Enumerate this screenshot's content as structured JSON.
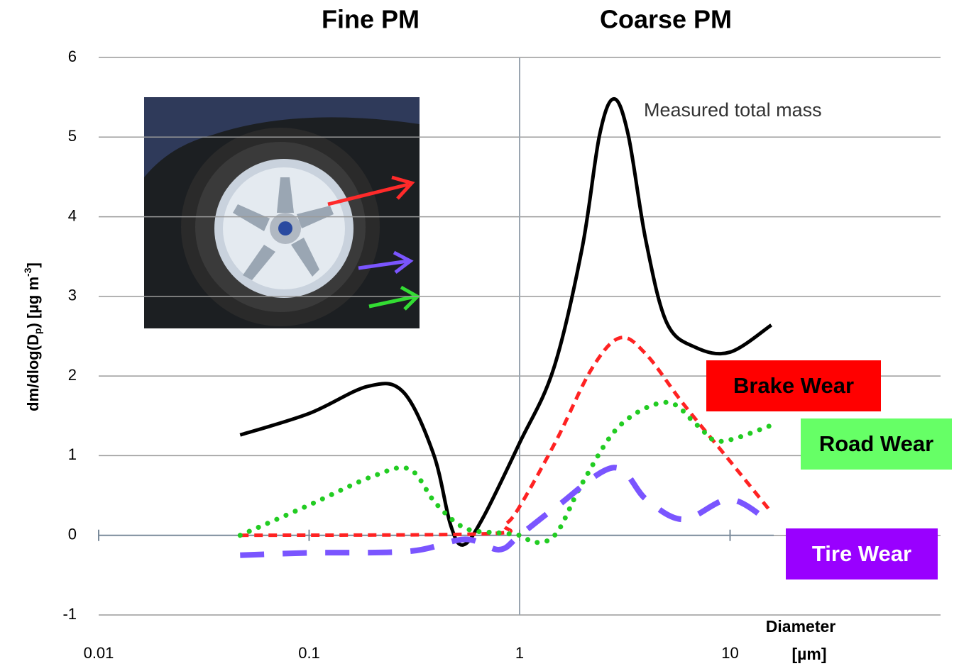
{
  "chart_data": {
    "type": "line",
    "annotations": {
      "fine": "Fine PM",
      "coarse": "Coarse PM",
      "total": "Measured total mass"
    },
    "y_label": [
      "dm/dlog(D",
      "p",
      ") [µg m",
      "-3",
      "]"
    ],
    "x_label": [
      "Diameter",
      "[µm]"
    ],
    "x_log": true,
    "xlim": [
      0.01,
      100
    ],
    "xticks": [
      0.01,
      0.1,
      1,
      10
    ],
    "ylim": [
      -1,
      6
    ],
    "yticks": [
      -1,
      0,
      1,
      2,
      3,
      4,
      5,
      6
    ],
    "grid": true,
    "vline": 1,
    "series": [
      {
        "name": "Measured total mass",
        "color": "#000000",
        "dash": "none",
        "x": [
          0.047,
          0.1,
          0.19,
          0.28,
          0.39,
          0.47,
          0.54,
          0.67,
          1,
          1.45,
          1.98,
          2.4,
          2.81,
          3.28,
          3.98,
          5.0,
          6.85,
          10,
          15.7
        ],
        "values": [
          1.26,
          1.53,
          1.87,
          1.8,
          1.02,
          0.13,
          -0.12,
          0.22,
          1.16,
          2.09,
          3.6,
          5.03,
          5.48,
          5.03,
          3.7,
          2.67,
          2.36,
          2.3,
          2.64
        ]
      },
      {
        "name": "Brake Wear",
        "color": "#ff2222",
        "box_color": "#ff0000",
        "text_color": "#000000",
        "dash": "12 8",
        "x": [
          0.047,
          0.7,
          0.85,
          1,
          1.5,
          2.2,
          3.0,
          4.0,
          6,
          10,
          15.7
        ],
        "values": [
          0,
          0.02,
          0.13,
          0.36,
          1.2,
          2.09,
          2.48,
          2.27,
          1.65,
          0.93,
          0.29
        ]
      },
      {
        "name": "Road Wear",
        "color": "#22cc22",
        "box_color": "#66ff66",
        "text_color": "#000000",
        "dash": "0.1 14",
        "x": [
          0.047,
          0.1,
          0.2,
          0.3,
          0.4,
          0.55,
          0.8,
          1.0,
          1.2,
          1.5,
          2.0,
          3,
          5,
          7,
          9,
          15.7
        ],
        "values": [
          0,
          0.38,
          0.74,
          0.83,
          0.4,
          0.09,
          0.03,
          0,
          -0.09,
          0.03,
          0.67,
          1.38,
          1.67,
          1.38,
          1.18,
          1.38
        ]
      },
      {
        "name": "Tire Wear",
        "color": "#7a55ff",
        "box_color": "#9900ff",
        "text_color": "#ffffff",
        "dash": "34 26",
        "x": [
          0.047,
          0.1,
          0.3,
          0.55,
          0.8,
          1.0,
          1.5,
          2.8,
          4,
          6,
          10,
          15.7
        ],
        "values": [
          -0.25,
          -0.22,
          -0.2,
          -0.05,
          -0.18,
          0,
          0.36,
          0.85,
          0.45,
          0.2,
          0.45,
          0.15
        ]
      }
    ]
  }
}
